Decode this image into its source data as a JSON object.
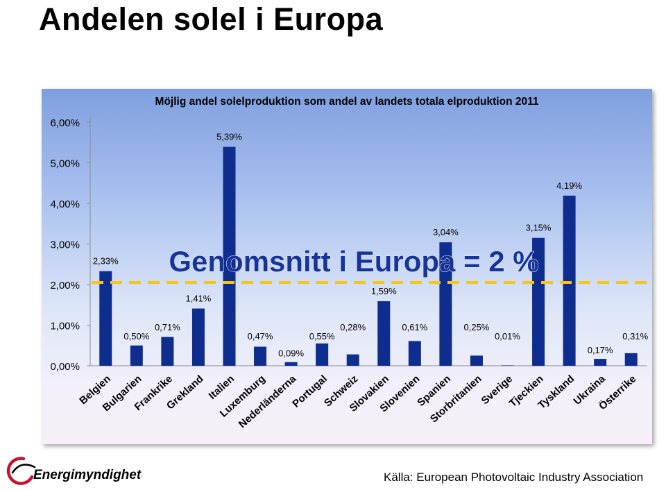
{
  "slide": {
    "title": "Andelen solel i Europa",
    "source": "Källa: European Photovoltaic Industry Association",
    "logo_text": "Energimyndigheten"
  },
  "chart_data": {
    "type": "bar",
    "title": "Möjlig andel solelproduktion som andel av landets totala elproduktion 2011",
    "categories": [
      "Belgien",
      "Bulgarien",
      "Frankrike",
      "Grekland",
      "Italien",
      "Luxemburg",
      "Nederländerna",
      "Portugal",
      "Schweiz",
      "Slovakien",
      "Slovenien",
      "Spanien",
      "Storbritanien",
      "Sverige",
      "Tjeckien",
      "Tyskland",
      "Ukraina",
      "Österrike"
    ],
    "values": [
      2.33,
      0.5,
      0.71,
      1.41,
      5.39,
      0.47,
      0.09,
      0.55,
      0.28,
      1.59,
      0.61,
      3.04,
      0.25,
      0.01,
      3.15,
      4.19,
      0.17,
      0.31
    ],
    "value_labels": [
      "2,33%",
      "0,50%",
      "0,71%",
      "1,41%",
      "5,39%",
      "0,47%",
      "0,09%",
      "0,55%",
      "0,28%",
      "1,59%",
      "0,61%",
      "3,04%",
      "0,25%",
      "0,01%",
      "3,15%",
      "4,19%",
      "0,17%",
      "0,31%"
    ],
    "y_ticks": [
      0,
      1,
      2,
      3,
      4,
      5,
      6
    ],
    "y_tick_labels": [
      "0,00%",
      "1,00%",
      "2,00%",
      "3,00%",
      "4,00%",
      "5,00%",
      "6,00%"
    ],
    "ylim": [
      0,
      6
    ],
    "reference_line": {
      "value": 2,
      "label": "Genomsnitt i Europa = 2 %"
    },
    "xlabel": "",
    "ylabel": "",
    "grid": false,
    "legend": "none",
    "colors": {
      "bar": "#0e2d8e",
      "reference_line": "#f5c518",
      "reference_label": "#163499"
    }
  }
}
